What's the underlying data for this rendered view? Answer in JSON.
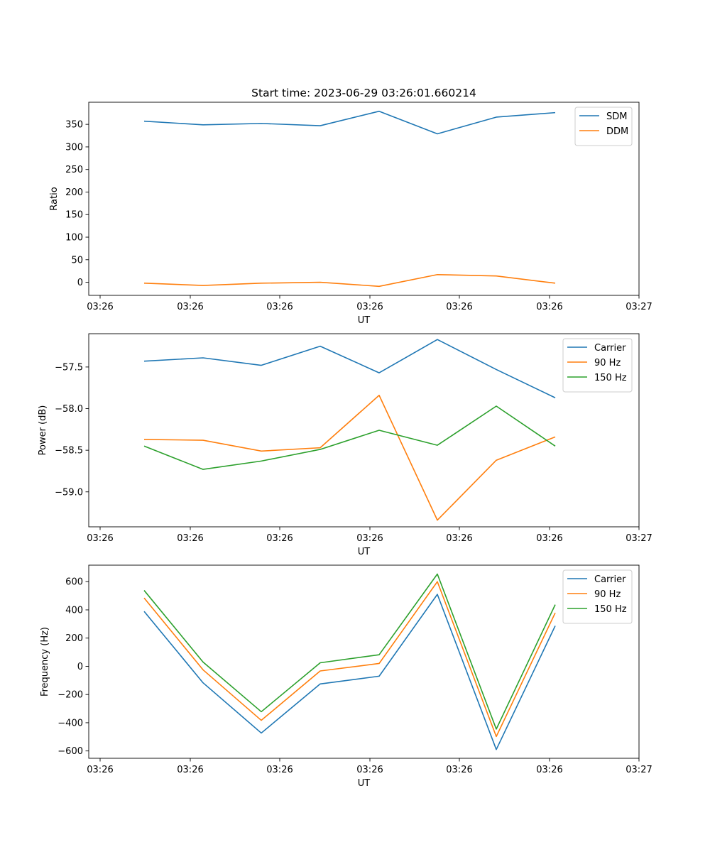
{
  "chart_data": [
    {
      "type": "line",
      "title": "Start time: 2023-06-29 03:26:01.660214",
      "xlabel": "UT",
      "ylabel": "Ratio",
      "x_tick_labels": [
        "03:26",
        "03:26",
        "03:26",
        "03:26",
        "03:26",
        "03:26",
        "03:26"
      ],
      "x_end_tick_label": "03:27",
      "y_ticks": [
        0,
        50,
        100,
        150,
        200,
        250,
        300,
        350
      ],
      "ylim": [
        -29,
        399
      ],
      "legend": "top-right",
      "grid": false,
      "series": [
        {
          "name": "SDM",
          "color": "#1f77b4",
          "values": [
            357,
            349,
            352,
            347,
            379,
            329,
            366,
            376
          ]
        },
        {
          "name": "DDM",
          "color": "#ff7f0e",
          "values": [
            -2,
            -7,
            -2,
            0,
            -9,
            17,
            14,
            -2
          ]
        }
      ]
    },
    {
      "type": "line",
      "title": "",
      "xlabel": "UT",
      "ylabel": "Power (dB)",
      "x_tick_labels": [
        "03:26",
        "03:26",
        "03:26",
        "03:26",
        "03:26",
        "03:26",
        "03:26"
      ],
      "x_end_tick_label": "03:27",
      "y_ticks": [
        -59.0,
        -58.5,
        -58.0,
        -57.5
      ],
      "y_tick_labels": [
        "−59.0",
        "−58.5",
        "−58.0",
        "−57.5"
      ],
      "ylim": [
        -59.42,
        -57.1
      ],
      "legend": "top-right",
      "grid": false,
      "series": [
        {
          "name": "Carrier",
          "color": "#1f77b4",
          "values": [
            -57.43,
            -57.39,
            -57.48,
            -57.25,
            -57.57,
            -57.17,
            -57.53,
            -57.87
          ]
        },
        {
          "name": "90 Hz",
          "color": "#ff7f0e",
          "values": [
            -58.37,
            -58.38,
            -58.51,
            -58.47,
            -57.84,
            -59.34,
            -58.62,
            -58.34
          ]
        },
        {
          "name": "150 Hz",
          "color": "#2ca02c",
          "values": [
            -58.45,
            -58.73,
            -58.63,
            -58.49,
            -58.26,
            -58.44,
            -57.97,
            -58.45
          ]
        }
      ]
    },
    {
      "type": "line",
      "title": "",
      "xlabel": "UT",
      "ylabel": "Frequency (Hz)",
      "x_tick_labels": [
        "03:26",
        "03:26",
        "03:26",
        "03:26",
        "03:26",
        "03:26",
        "03:26"
      ],
      "x_end_tick_label": "03:27",
      "y_ticks": [
        -600,
        -400,
        -200,
        0,
        200,
        400,
        600
      ],
      "y_tick_labels": [
        "−600",
        "−400",
        "−200",
        "0",
        "200",
        "400",
        "600"
      ],
      "ylim": [
        -652,
        717
      ],
      "legend": "top-right",
      "grid": false,
      "series": [
        {
          "name": "Carrier",
          "color": "#1f77b4",
          "values": [
            389,
            -117,
            -473,
            -125,
            -70,
            510,
            -590,
            287
          ]
        },
        {
          "name": "90 Hz",
          "color": "#ff7f0e",
          "values": [
            484,
            -25,
            -383,
            -33,
            20,
            600,
            -498,
            379
          ]
        },
        {
          "name": "150 Hz",
          "color": "#2ca02c",
          "values": [
            538,
            30,
            -322,
            25,
            82,
            654,
            -445,
            437
          ]
        }
      ]
    }
  ]
}
